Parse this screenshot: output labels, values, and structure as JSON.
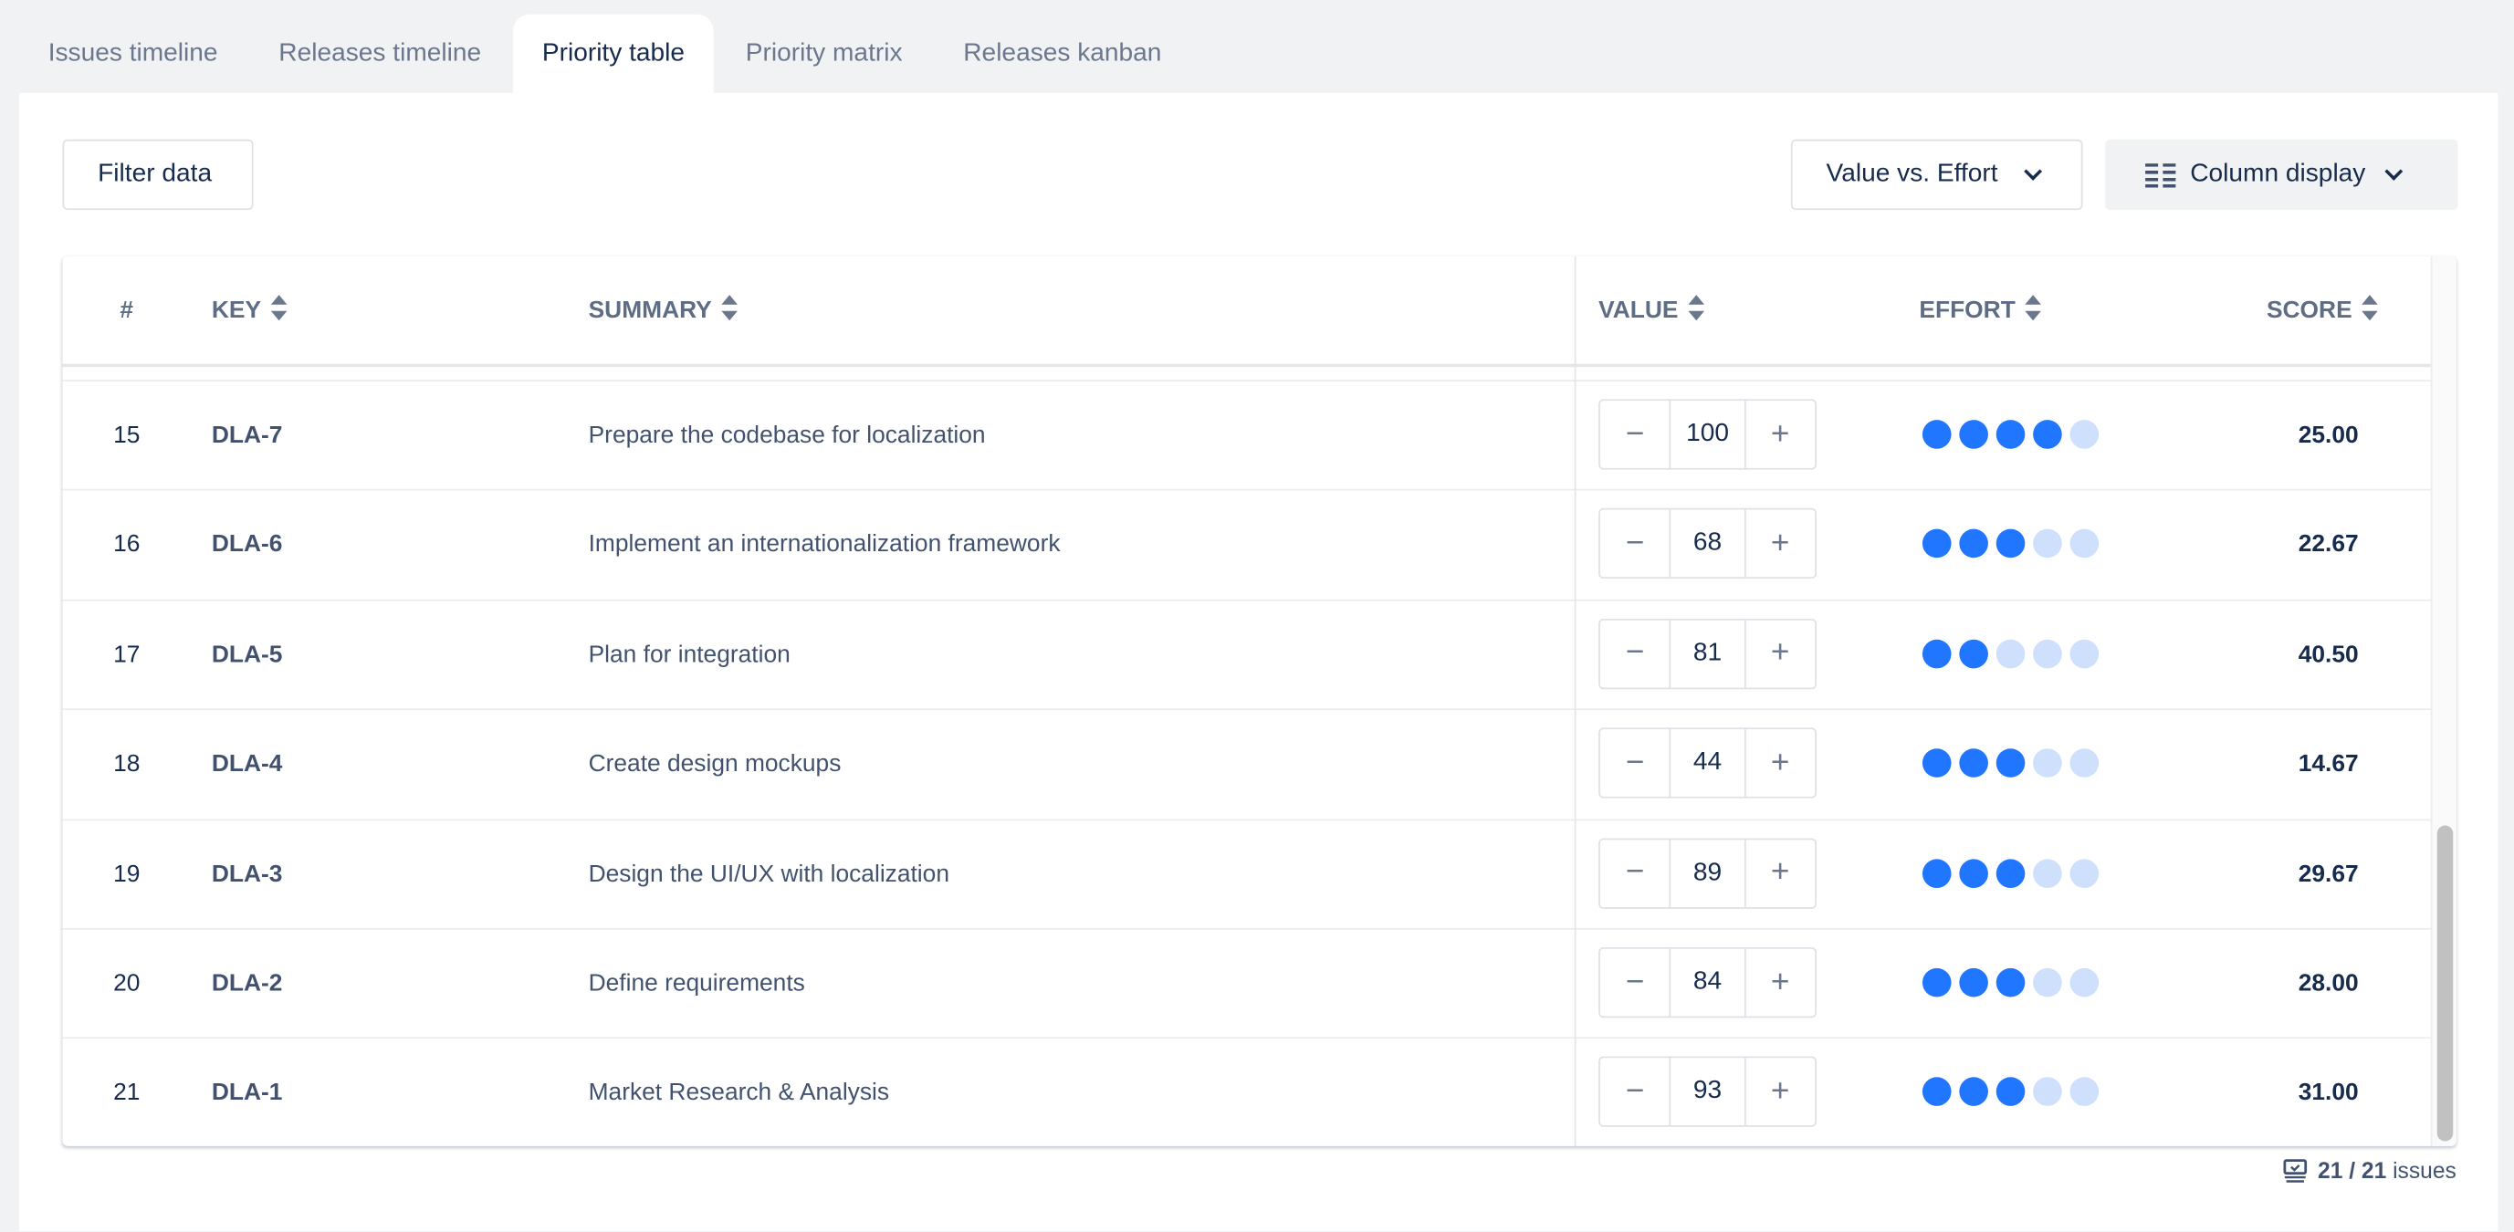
{
  "tabs": [
    {
      "label": "Issues timeline",
      "active": false
    },
    {
      "label": "Releases timeline",
      "active": false
    },
    {
      "label": "Priority table",
      "active": true
    },
    {
      "label": "Priority matrix",
      "active": false
    },
    {
      "label": "Releases kanban",
      "active": false
    }
  ],
  "toolbar": {
    "filter_label": "Filter data",
    "mode_label": "Value vs. Effort",
    "columns_label": "Column display"
  },
  "table": {
    "headers": {
      "num": "#",
      "key": "KEY",
      "summary": "SUMMARY",
      "value": "VALUE",
      "effort": "EFFORT",
      "score": "SCORE"
    },
    "rows": [
      {
        "num": "15",
        "key": "DLA-7",
        "summary": "Prepare the codebase for localization",
        "value": "100",
        "effort": 4,
        "score": "25.00"
      },
      {
        "num": "16",
        "key": "DLA-6",
        "summary": "Implement an internationalization framework",
        "value": "68",
        "effort": 3,
        "score": "22.67"
      },
      {
        "num": "17",
        "key": "DLA-5",
        "summary": "Plan for integration",
        "value": "81",
        "effort": 2,
        "score": "40.50"
      },
      {
        "num": "18",
        "key": "DLA-4",
        "summary": "Create design mockups",
        "value": "44",
        "effort": 3,
        "score": "14.67"
      },
      {
        "num": "19",
        "key": "DLA-3",
        "summary": "Design the UI/UX with localization",
        "value": "89",
        "effort": 3,
        "score": "29.67"
      },
      {
        "num": "20",
        "key": "DLA-2",
        "summary": "Define requirements",
        "value": "84",
        "effort": 3,
        "score": "28.00"
      },
      {
        "num": "21",
        "key": "DLA-1",
        "summary": "Market Research & Analysis",
        "value": "93",
        "effort": 3,
        "score": "31.00"
      }
    ],
    "effort_max": 5,
    "minus": "−",
    "plus": "+"
  },
  "footer": {
    "count": "21 / 21",
    "unit": "issues"
  },
  "colors": {
    "effort_on": "#2176ff",
    "effort_off": "#cfe0fc",
    "text": "#172b4d"
  }
}
